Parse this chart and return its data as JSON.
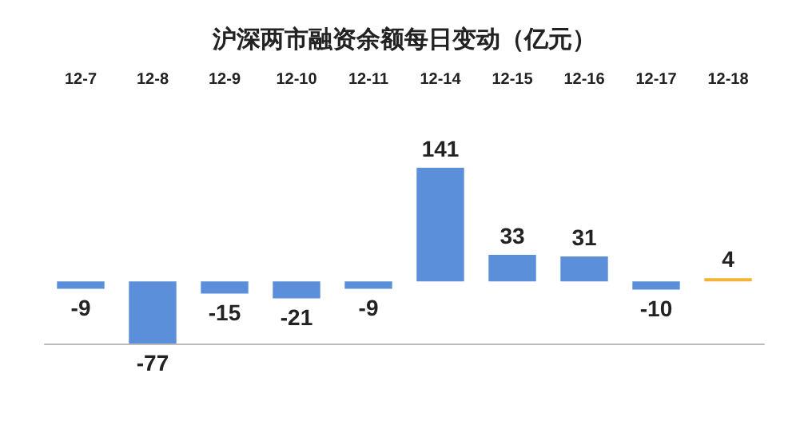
{
  "chart_data": {
    "type": "bar",
    "title": "沪深两市融资余额每日变动（亿元）",
    "categories": [
      "12-7",
      "12-8",
      "12-9",
      "12-10",
      "12-11",
      "12-14",
      "12-15",
      "12-16",
      "12-17",
      "12-18"
    ],
    "values": [
      -9,
      -77,
      -15,
      -21,
      -9,
      141,
      33,
      31,
      -10,
      4
    ],
    "colors": [
      "#5b8fd9",
      "#5b8fd9",
      "#5b8fd9",
      "#5b8fd9",
      "#5b8fd9",
      "#5b8fd9",
      "#5b8fd9",
      "#5b8fd9",
      "#5b8fd9",
      "#f5b335"
    ],
    "data_labels": true
  }
}
